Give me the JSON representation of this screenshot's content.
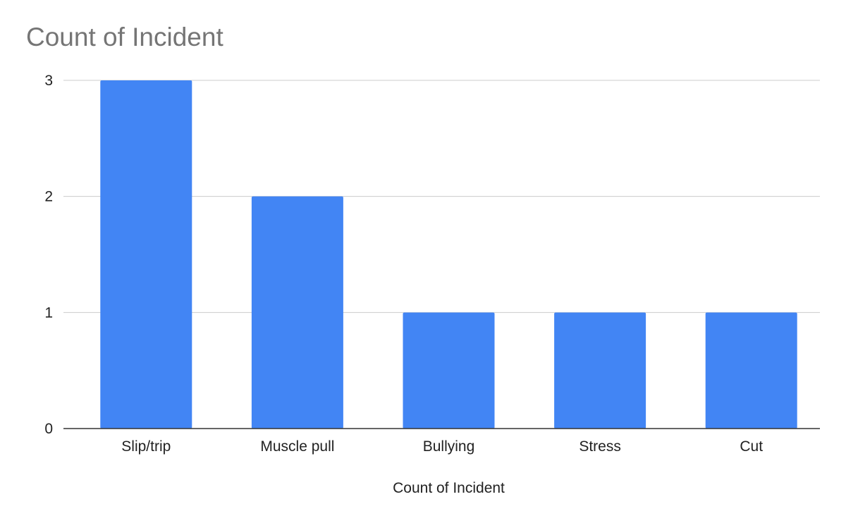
{
  "chart_data": {
    "type": "bar",
    "title": "Count of Incident",
    "categories": [
      "Slip/trip",
      "Muscle pull",
      "Bullying",
      "Stress",
      "Cut"
    ],
    "series": [
      {
        "values": [
          3,
          2,
          1,
          1,
          1
        ]
      }
    ],
    "xlabel": "Count of Incident",
    "ylabel": "",
    "ylim": [
      0,
      3
    ],
    "yticks": [
      0,
      1,
      2,
      3
    ],
    "grid": true,
    "legend": "none",
    "colors": {
      "bar": "#4285f4",
      "grid": "#cccccc",
      "baseline": "#333333",
      "title": "#757575",
      "text": "#222222"
    }
  }
}
